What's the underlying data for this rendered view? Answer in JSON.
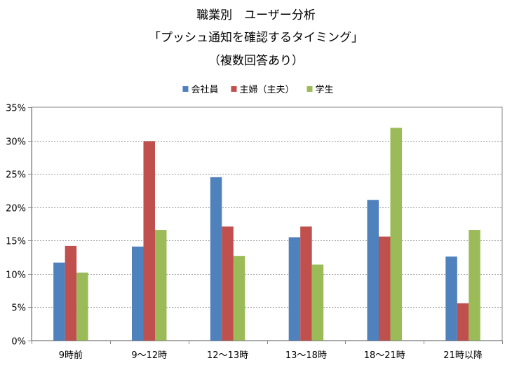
{
  "chart_data": {
    "type": "bar",
    "title": [
      "職業別　ユーザー分析",
      "「プッシュ通知を確認するタイミング」",
      "（複数回答あり）"
    ],
    "categories": [
      "9時前",
      "9～12時",
      "12～13時",
      "13～18時",
      "18～21時",
      "21時以降"
    ],
    "series": [
      {
        "name": "会社員",
        "color": "#4F81BD",
        "values": [
          11.7,
          14.1,
          24.5,
          15.5,
          21.1,
          12.6
        ]
      },
      {
        "name": "主婦（主夫）",
        "color": "#C0504D",
        "values": [
          14.2,
          29.9,
          17.1,
          17.1,
          15.6,
          5.6
        ]
      },
      {
        "name": "学生",
        "color": "#9BBB59",
        "values": [
          10.2,
          16.6,
          12.7,
          11.4,
          31.9,
          16.6
        ]
      }
    ],
    "value_unit": "%",
    "ylim": [
      0,
      35
    ],
    "ytick_step": 5,
    "yticks": [
      "0%",
      "5%",
      "10%",
      "15%",
      "20%",
      "25%",
      "30%",
      "35%"
    ],
    "xlabel": "",
    "ylabel": "",
    "grid": true,
    "grid_style": "dotted",
    "legend_position": "top"
  }
}
